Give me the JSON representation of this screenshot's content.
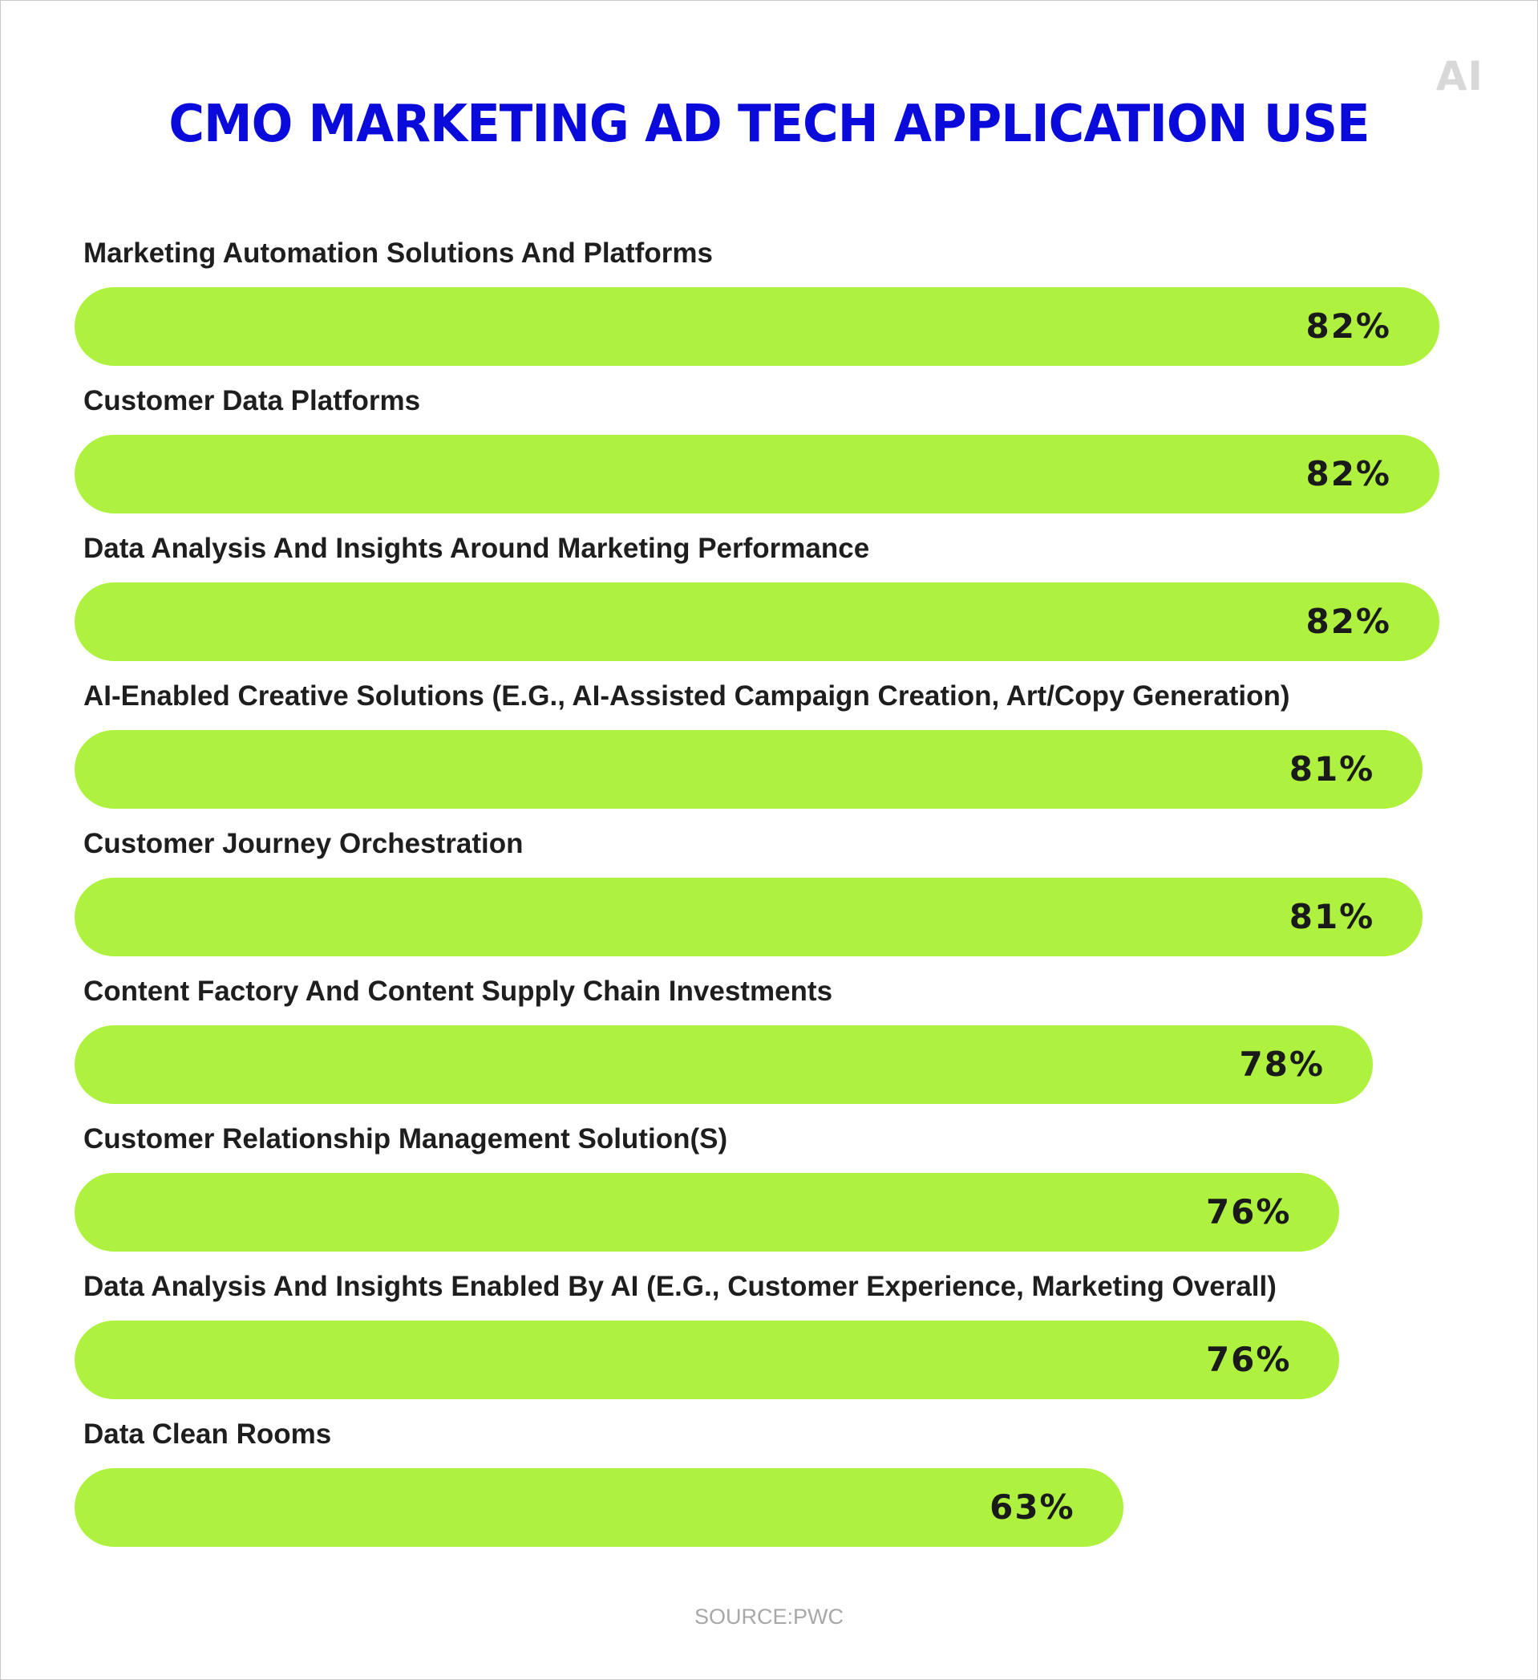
{
  "logo_text": "AI",
  "colors": {
    "title": "#0a0bdb",
    "bar": "#aef23f",
    "label": "#1e1e1e",
    "value": "#1a1a1a",
    "source": "#a8a8a8",
    "logo": "#d8d8d8"
  },
  "chart_data": {
    "type": "bar",
    "orientation": "horizontal",
    "title": "CMO MARKETING AD TECH APPLICATION USE",
    "categories": [
      "Marketing Automation Solutions And Platforms",
      "Customer Data Platforms",
      "Data Analysis And Insights Around Marketing Performance",
      "AI-Enabled Creative Solutions (E.G., AI-Assisted Campaign Creation, Art/Copy Generation)",
      "Customer Journey Orchestration",
      "Content Factory And Content Supply Chain Investments",
      "Customer Relationship Management Solution(S)",
      "Data Analysis And Insights Enabled By AI (E.G., Customer Experience, Marketing Overall)",
      "Data Clean Rooms"
    ],
    "values": [
      82,
      82,
      82,
      81,
      81,
      78,
      76,
      76,
      63
    ],
    "value_labels": [
      "82%",
      "82%",
      "82%",
      "81%",
      "81%",
      "78%",
      "76%",
      "76%",
      "63%"
    ],
    "unit": "%",
    "xlim": [
      0,
      100
    ],
    "grid": false,
    "legend": "none"
  },
  "source": "SOURCE:PWC"
}
